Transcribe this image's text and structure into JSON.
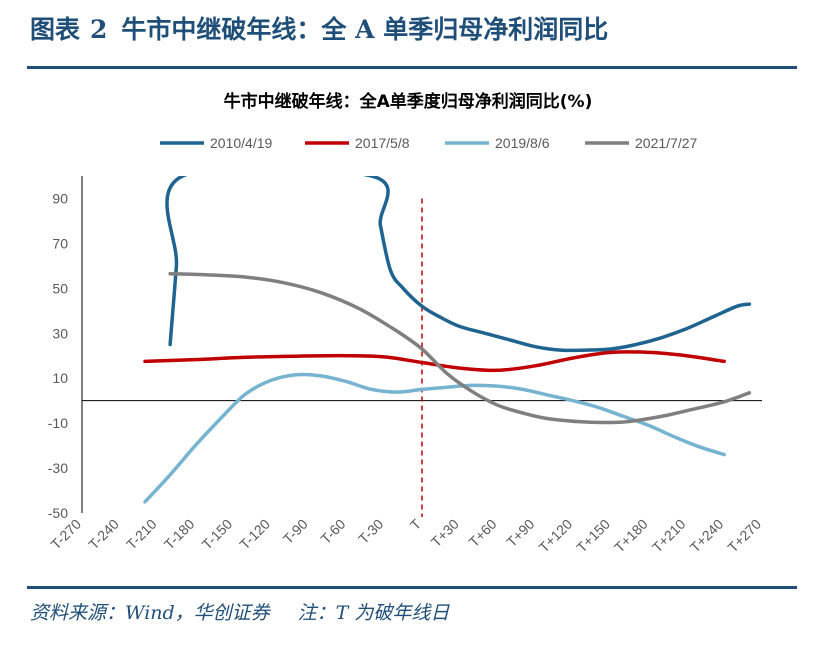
{
  "figure": {
    "label": "图表",
    "number": "2",
    "title": "牛市中继破年线：全 A 单季归母净利润同比"
  },
  "footer": {
    "source": "资料来源：Wind，华创证券",
    "note": "注：T 为破年线日"
  },
  "colors": {
    "header": "#1f4e79",
    "axis": "#000000",
    "vline": "#c00000"
  },
  "chart_data": {
    "type": "line",
    "title": "牛市中继破年线：全A单季度归母净利润同比(%)",
    "legend_position": "top",
    "grid": false,
    "x_categories": [
      "T-270",
      "T-240",
      "T-210",
      "T-180",
      "T-150",
      "T-120",
      "T-90",
      "T-60",
      "T-30",
      "T",
      "T+30",
      "T+60",
      "T+90",
      "T+120",
      "T+150",
      "T+180",
      "T+210",
      "T+240",
      "T+270"
    ],
    "xlim": [
      -270,
      270
    ],
    "ylim": [
      -50,
      100
    ],
    "yticks": [
      90,
      70,
      50,
      30,
      10,
      -10,
      -30,
      -50
    ],
    "zero_line": 0,
    "marker_line": {
      "x": 0,
      "style": "dashed"
    },
    "series": [
      {
        "name": "2010/4/19",
        "color": "#1f6391",
        "points": [
          [
            -200,
            25
          ],
          [
            -195,
            60
          ],
          [
            -190,
            100
          ],
          [
            -40,
            100
          ],
          [
            -33,
            78
          ],
          [
            -25,
            58
          ],
          [
            -15,
            50
          ],
          [
            0,
            42
          ],
          [
            15,
            37
          ],
          [
            30,
            33
          ],
          [
            50,
            30
          ],
          [
            70,
            27
          ],
          [
            90,
            24
          ],
          [
            110,
            22.5
          ],
          [
            130,
            22.5
          ],
          [
            150,
            23
          ],
          [
            170,
            25
          ],
          [
            190,
            28
          ],
          [
            210,
            32
          ],
          [
            230,
            37
          ],
          [
            250,
            42
          ],
          [
            260,
            43
          ]
        ]
      },
      {
        "name": "2017/5/8",
        "color": "#c00000",
        "points": [
          [
            -220,
            17.5
          ],
          [
            -180,
            18.3
          ],
          [
            -140,
            19.3
          ],
          [
            -100,
            19.8
          ],
          [
            -60,
            20
          ],
          [
            -30,
            19.5
          ],
          [
            0,
            17
          ],
          [
            30,
            14.5
          ],
          [
            60,
            13.5
          ],
          [
            90,
            15.5
          ],
          [
            120,
            19
          ],
          [
            150,
            21.5
          ],
          [
            180,
            21.5
          ],
          [
            210,
            20
          ],
          [
            240,
            17.5
          ]
        ]
      },
      {
        "name": "2019/8/6",
        "color": "#76b3d0",
        "points": [
          [
            -220,
            -45
          ],
          [
            -200,
            -33
          ],
          [
            -180,
            -20
          ],
          [
            -160,
            -8
          ],
          [
            -140,
            3
          ],
          [
            -120,
            9
          ],
          [
            -100,
            11.5
          ],
          [
            -80,
            11
          ],
          [
            -60,
            8.5
          ],
          [
            -40,
            5
          ],
          [
            -20,
            3.8
          ],
          [
            0,
            5
          ],
          [
            20,
            6
          ],
          [
            40,
            6.8
          ],
          [
            60,
            6.5
          ],
          [
            80,
            5
          ],
          [
            100,
            2.5
          ],
          [
            120,
            0
          ],
          [
            140,
            -3
          ],
          [
            160,
            -7
          ],
          [
            180,
            -11
          ],
          [
            200,
            -16
          ],
          [
            220,
            -20.5
          ],
          [
            240,
            -24
          ]
        ]
      },
      {
        "name": "2021/7/27",
        "color": "#7f7f7f",
        "points": [
          [
            -200,
            56.5
          ],
          [
            -170,
            56
          ],
          [
            -140,
            55
          ],
          [
            -110,
            52.5
          ],
          [
            -80,
            48
          ],
          [
            -50,
            41
          ],
          [
            -20,
            31
          ],
          [
            0,
            23
          ],
          [
            20,
            12
          ],
          [
            40,
            4
          ],
          [
            60,
            -2
          ],
          [
            80,
            -5.5
          ],
          [
            100,
            -8
          ],
          [
            130,
            -9.5
          ],
          [
            160,
            -9.5
          ],
          [
            190,
            -7
          ],
          [
            210,
            -4.5
          ],
          [
            240,
            -0.5
          ],
          [
            260,
            3.5
          ]
        ]
      }
    ]
  }
}
